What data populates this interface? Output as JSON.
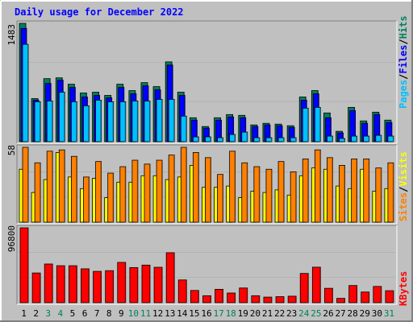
{
  "title": "Daily usage for December 2022",
  "colors": {
    "background": "#c0c0c0",
    "title": "#0000ff",
    "hits": "#00805c",
    "files": "#0000ff",
    "pages": "#00c0ff",
    "visits": "#ffff00",
    "sites": "#ff8000",
    "kbytes": "#ff0000",
    "weekend_day": "#00805c",
    "weekday": "#000000"
  },
  "panels": {
    "top": {
      "ymax_label": "1483",
      "legend": [
        "Pages",
        "Files",
        "Hits"
      ]
    },
    "middle": {
      "ymax_label": "58",
      "legend": [
        "Sites",
        "Visits"
      ]
    },
    "bottom": {
      "ymax_label": "96800",
      "legend": [
        "KBytes"
      ]
    }
  },
  "chart_data": [
    {
      "type": "bar",
      "title": "Daily usage for December 2022",
      "categories": [
        "1",
        "2",
        "3",
        "4",
        "5",
        "6",
        "7",
        "8",
        "9",
        "10",
        "11",
        "12",
        "13",
        "14",
        "15",
        "16",
        "17",
        "18",
        "19",
        "20",
        "21",
        "22",
        "23",
        "24",
        "25",
        "26",
        "27",
        "28",
        "29",
        "30",
        "31"
      ],
      "weekend_days": [
        "3",
        "4",
        "10",
        "11",
        "17",
        "18",
        "24",
        "25",
        "31"
      ],
      "ylim": [
        0,
        1483
      ],
      "series": [
        {
          "name": "Hits",
          "values": [
            1483,
            540,
            790,
            800,
            720,
            610,
            620,
            580,
            720,
            640,
            740,
            690,
            1000,
            620,
            300,
            190,
            300,
            340,
            330,
            210,
            230,
            220,
            200,
            560,
            640,
            360,
            130,
            430,
            260,
            370,
            270
          ]
        },
        {
          "name": "Files",
          "values": [
            1420,
            520,
            730,
            770,
            680,
            560,
            580,
            550,
            680,
            600,
            700,
            650,
            960,
            580,
            270,
            170,
            270,
            310,
            300,
            190,
            210,
            200,
            180,
            520,
            600,
            300,
            110,
            390,
            230,
            340,
            240
          ]
        },
        {
          "name": "Pages",
          "values": [
            1220,
            500,
            510,
            620,
            500,
            450,
            520,
            500,
            500,
            510,
            510,
            530,
            530,
            320,
            60,
            60,
            50,
            90,
            120,
            50,
            50,
            50,
            50,
            420,
            430,
            70,
            40,
            70,
            70,
            80,
            70
          ]
        }
      ]
    },
    {
      "type": "bar",
      "ylim": [
        0,
        58
      ],
      "series": [
        {
          "name": "Sites",
          "values": [
            58,
            46,
            55,
            56,
            51,
            35,
            47,
            38,
            43,
            48,
            45,
            48,
            52,
            58,
            54,
            50,
            37,
            55,
            46,
            43,
            41,
            47,
            39,
            49,
            56,
            50,
            44,
            49,
            49,
            42,
            46
          ]
        },
        {
          "name": "Visits",
          "values": [
            41,
            23,
            33,
            54,
            35,
            26,
            34,
            19,
            31,
            31,
            36,
            36,
            33,
            35,
            44,
            27,
            27,
            28,
            19,
            24,
            23,
            25,
            21,
            36,
            42,
            41,
            28,
            26,
            41,
            24,
            26
          ]
        }
      ]
    },
    {
      "type": "bar",
      "ylim": [
        0,
        96800
      ],
      "series": [
        {
          "name": "KBytes",
          "values": [
            96800,
            38400,
            50000,
            47800,
            47800,
            43800,
            40500,
            41400,
            52100,
            45400,
            48600,
            45800,
            64600,
            29400,
            15800,
            9000,
            17300,
            12500,
            19000,
            9000,
            7200,
            7800,
            8400,
            37800,
            45900,
            18600,
            5600,
            22200,
            13800,
            21000,
            15500
          ]
        }
      ]
    }
  ]
}
